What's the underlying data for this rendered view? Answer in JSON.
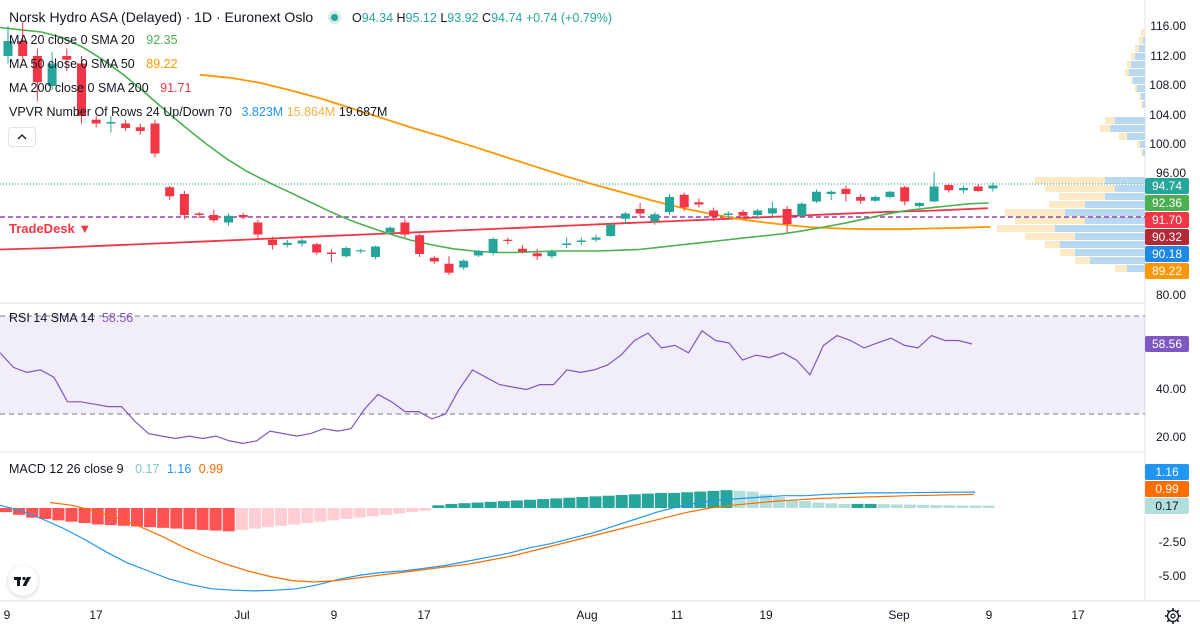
{
  "header": {
    "title": "Norsk Hydro ASA (Delayed) · 1D · Euronext Oslo",
    "status_color": "#26a69a",
    "o_label": "O",
    "o_value": "94.34",
    "h_label": "H",
    "h_value": "95.12",
    "l_label": "L",
    "l_value": "93.92",
    "c_label": "C",
    "c_value": "94.74",
    "change": "+0.74 (+0.79%)"
  },
  "indicators": {
    "ma20": {
      "label": "MA 20 close 0 SMA 20",
      "value": "92.35",
      "color": "#4caf50"
    },
    "ma50": {
      "label": "MA 50 close 0 SMA 50",
      "value": "89.22",
      "color": "#ff9800"
    },
    "ma200": {
      "label": "MA 200 close 0 SMA 200",
      "value": "91.71",
      "color": "#f23645"
    },
    "vpvr": {
      "label": "VPVR Number Of Rows 24 Up/Down 70",
      "v1": "3.823M",
      "v2": "15.864M",
      "v3": "19.687M"
    }
  },
  "brand_label": "TradeDesk ▼",
  "price_axis": {
    "ticks": [
      "116.00",
      "112.00",
      "108.00",
      "104.00",
      "100.00",
      "96.00",
      "80.00"
    ],
    "tags": [
      {
        "value": "94.74",
        "color": "#26a69a"
      },
      {
        "value": "92.36",
        "color": "#4caf50"
      },
      {
        "value": "91.70",
        "color": "#f23645"
      },
      {
        "value": "90.32",
        "color": "#b22833"
      },
      {
        "value": "90.18",
        "color": "#1e88e5"
      },
      {
        "value": "89.22",
        "color": "#ff9800"
      }
    ]
  },
  "rsi": {
    "label": "RSI 14 SMA 14",
    "value": "58.56",
    "color": "#7e57c2",
    "ticks": [
      "40.00",
      "20.00"
    ],
    "tag": "58.56"
  },
  "macd": {
    "label": "MACD 12 26 close 9",
    "v1": "0.17",
    "v2": "1.16",
    "v3": "0.99",
    "ticks": [
      "-2.50",
      "-5.00"
    ],
    "tags": [
      {
        "value": "1.16",
        "color": "#2196f3",
        "text": "#ffffff"
      },
      {
        "value": "0.99",
        "color": "#ff6d00",
        "text": "#ffffff"
      },
      {
        "value": "0.17",
        "color": "#b2dfdb",
        "text": "#131722"
      }
    ]
  },
  "time_axis": [
    "9",
    "17",
    "Jul",
    "9",
    "17",
    "Aug",
    "11",
    "19",
    "Sep",
    "9",
    "17"
  ],
  "icons": {
    "logo": "tradingview-logo-icon",
    "settings": "gear-icon",
    "collapse": "chevron-up-icon"
  },
  "chart_data": {
    "type": "candlestick",
    "up_color": "#26a69a",
    "down_color": "#f23645",
    "ylim": [
      80,
      116
    ],
    "candles": [
      {
        "o": 112,
        "h": 116,
        "l": 111,
        "c": 114
      },
      {
        "o": 114,
        "h": 116.5,
        "l": 111.5,
        "c": 112
      },
      {
        "o": 112,
        "h": 113,
        "l": 106,
        "c": 108.5
      },
      {
        "o": 108,
        "h": 112.5,
        "l": 107.5,
        "c": 111
      },
      {
        "o": 112,
        "h": 113,
        "l": 110,
        "c": 111.5
      },
      {
        "o": 111,
        "h": 112,
        "l": 103,
        "c": 104
      },
      {
        "o": 103.5,
        "h": 104,
        "l": 102.5,
        "c": 103
      },
      {
        "o": 103,
        "h": 104,
        "l": 101.8,
        "c": 103.2
      },
      {
        "o": 103,
        "h": 103.5,
        "l": 102,
        "c": 102.4
      },
      {
        "o": 102.5,
        "h": 103,
        "l": 101.5,
        "c": 102
      },
      {
        "o": 103,
        "h": 103.5,
        "l": 98.5,
        "c": 99
      },
      {
        "o": 94.5,
        "h": 94.7,
        "l": 92.8,
        "c": 93.3
      },
      {
        "o": 93.6,
        "h": 94,
        "l": 90.2,
        "c": 90.8
      },
      {
        "o": 91,
        "h": 91.2,
        "l": 90.4,
        "c": 90.8
      },
      {
        "o": 90.8,
        "h": 91.5,
        "l": 89.8,
        "c": 90.1
      },
      {
        "o": 89.8,
        "h": 91,
        "l": 89.4,
        "c": 90.7
      },
      {
        "o": 90.8,
        "h": 91.1,
        "l": 90.2,
        "c": 90.5
      },
      {
        "o": 89.8,
        "h": 90.2,
        "l": 87.6,
        "c": 88.2
      },
      {
        "o": 87.5,
        "h": 87.9,
        "l": 86.2,
        "c": 86.8
      },
      {
        "o": 86.8,
        "h": 87.5,
        "l": 86.5,
        "c": 87.1
      },
      {
        "o": 87,
        "h": 87.7,
        "l": 86.6,
        "c": 87.4
      },
      {
        "o": 86.9,
        "h": 87.1,
        "l": 85.5,
        "c": 85.8
      },
      {
        "o": 85.8,
        "h": 86.2,
        "l": 84.5,
        "c": 85.6
      },
      {
        "o": 85.3,
        "h": 86.6,
        "l": 85.1,
        "c": 86.4
      },
      {
        "o": 86,
        "h": 86.3,
        "l": 85.7,
        "c": 86.1
      },
      {
        "o": 85.2,
        "h": 86.7,
        "l": 84.9,
        "c": 86.6
      },
      {
        "o": 88.5,
        "h": 89.3,
        "l": 88.3,
        "c": 89.1
      },
      {
        "o": 89.8,
        "h": 90.3,
        "l": 87.8,
        "c": 88.2
      },
      {
        "o": 88.1,
        "h": 88.3,
        "l": 85.2,
        "c": 85.6
      },
      {
        "o": 85.1,
        "h": 85.3,
        "l": 84.3,
        "c": 84.6
      },
      {
        "o": 84.3,
        "h": 85.3,
        "l": 82.8,
        "c": 83.1
      },
      {
        "o": 83.8,
        "h": 84.9,
        "l": 83.5,
        "c": 84.7
      },
      {
        "o": 85.4,
        "h": 86.1,
        "l": 85.2,
        "c": 86.0
      },
      {
        "o": 85.8,
        "h": 87.8,
        "l": 85.4,
        "c": 87.6
      },
      {
        "o": 87.5,
        "h": 87.8,
        "l": 86.9,
        "c": 87.4
      },
      {
        "o": 86.3,
        "h": 86.8,
        "l": 85.7,
        "c": 85.9
      },
      {
        "o": 85.7,
        "h": 86.3,
        "l": 84.8,
        "c": 85.3
      },
      {
        "o": 85.3,
        "h": 86.2,
        "l": 85.0,
        "c": 85.9
      },
      {
        "o": 86.8,
        "h": 87.8,
        "l": 86.4,
        "c": 87.0
      },
      {
        "o": 87.2,
        "h": 87.8,
        "l": 86.8,
        "c": 87.4
      },
      {
        "o": 87.5,
        "h": 88.2,
        "l": 87.2,
        "c": 87.8
      },
      {
        "o": 88.0,
        "h": 89.8,
        "l": 87.9,
        "c": 89.5
      },
      {
        "o": 90.3,
        "h": 91.2,
        "l": 89.6,
        "c": 91.0
      },
      {
        "o": 91.6,
        "h": 92.4,
        "l": 90.6,
        "c": 91.0
      },
      {
        "o": 90.0,
        "h": 91.2,
        "l": 89.5,
        "c": 90.9
      },
      {
        "o": 91.2,
        "h": 93.6,
        "l": 90.8,
        "c": 93.2
      },
      {
        "o": 93.5,
        "h": 93.8,
        "l": 91.3,
        "c": 91.8
      },
      {
        "o": 92.5,
        "h": 93.0,
        "l": 91.8,
        "c": 92.2
      },
      {
        "o": 91.4,
        "h": 91.8,
        "l": 90.0,
        "c": 90.6
      },
      {
        "o": 90.8,
        "h": 91.3,
        "l": 90.1,
        "c": 91.0
      },
      {
        "o": 91.2,
        "h": 91.5,
        "l": 90.4,
        "c": 90.7
      },
      {
        "o": 90.8,
        "h": 91.6,
        "l": 90.3,
        "c": 91.4
      },
      {
        "o": 91.0,
        "h": 92.6,
        "l": 90.6,
        "c": 91.7
      },
      {
        "o": 91.6,
        "h": 92.0,
        "l": 88.5,
        "c": 89.6
      },
      {
        "o": 90.7,
        "h": 92.5,
        "l": 90.5,
        "c": 92.3
      },
      {
        "o": 92.6,
        "h": 94.2,
        "l": 92.4,
        "c": 93.9
      },
      {
        "o": 93.6,
        "h": 94.1,
        "l": 92.8,
        "c": 93.9
      },
      {
        "o": 94.3,
        "h": 94.7,
        "l": 92.6,
        "c": 93.6
      },
      {
        "o": 93.2,
        "h": 93.6,
        "l": 92.3,
        "c": 92.7
      },
      {
        "o": 92.7,
        "h": 93.4,
        "l": 92.5,
        "c": 93.2
      },
      {
        "o": 93.2,
        "h": 94.0,
        "l": 93.0,
        "c": 93.9
      },
      {
        "o": 94.5,
        "h": 94.7,
        "l": 92.1,
        "c": 92.6
      },
      {
        "o": 92.0,
        "h": 92.5,
        "l": 91.8,
        "c": 92.4
      },
      {
        "o": 92.6,
        "h": 96.5,
        "l": 92.5,
        "c": 94.6
      },
      {
        "o": 94.8,
        "h": 95.0,
        "l": 93.8,
        "c": 94.1
      },
      {
        "o": 94.1,
        "h": 94.7,
        "l": 93.7,
        "c": 94.4
      },
      {
        "o": 94.6,
        "h": 94.9,
        "l": 93.9,
        "c": 94.0
      },
      {
        "o": 94.34,
        "h": 95.12,
        "l": 93.92,
        "c": 94.74
      }
    ],
    "ma20_values": [
      115.8,
      115.5,
      115.2,
      114.5,
      113.2,
      111.5,
      109.5,
      107.2,
      104.8,
      102.5,
      100.3,
      98.3,
      96.6,
      95.2,
      93.9,
      92.6,
      91.3,
      90.1,
      89.1,
      88.2,
      87.4,
      86.8,
      86.3,
      86.0,
      85.8,
      85.8,
      85.9,
      86.0,
      86.0,
      86.0,
      86.1,
      86.2,
      86.5,
      86.8,
      87.1,
      87.4,
      87.7,
      88.0,
      88.3,
      88.7,
      89.2,
      89.7,
      90.3,
      90.9,
      91.4,
      91.7,
      92.0,
      92.3,
      92.4
    ],
    "ma50_values": [
      109.5,
      109.1,
      108.4,
      107.4,
      106.3,
      105.0,
      103.7,
      102.4,
      101.2,
      99.9,
      98.6,
      97.3,
      96.0,
      94.8,
      93.7,
      92.6,
      91.6,
      90.8,
      90.1,
      89.6,
      89.2,
      89.0,
      88.9,
      88.9,
      89.0,
      89.1,
      89.22
    ],
    "ma200_values": [
      86.2,
      86.4,
      86.7,
      87.0,
      87.3,
      87.6,
      87.9,
      88.2,
      88.5,
      88.8,
      89.1,
      89.4,
      89.7,
      90.0,
      90.3,
      90.6,
      90.9,
      91.2,
      91.4,
      91.71
    ],
    "rsi_values": [
      55,
      49,
      47,
      48,
      45,
      35,
      35,
      34,
      33,
      33,
      27,
      22,
      21,
      20,
      21,
      20,
      21,
      19,
      18,
      19,
      23,
      22,
      21,
      22,
      24,
      23,
      24,
      32,
      38,
      35,
      31,
      31,
      28,
      30,
      40,
      48,
      45,
      42,
      41,
      40,
      42,
      42,
      48,
      47,
      48,
      50,
      54,
      60,
      63,
      57,
      58,
      55,
      64,
      60,
      59,
      52,
      54,
      53,
      55,
      52,
      46,
      58,
      62,
      60,
      57,
      59,
      61,
      58,
      57,
      62,
      60,
      60,
      58.56
    ],
    "macd_values": [
      0.2,
      -0.2,
      -0.8,
      -1.5,
      -2.3,
      -3.2,
      -4.0,
      -4.6,
      -5.2,
      -5.6,
      -5.9,
      -6.0,
      -6.05,
      -6.0,
      -5.9,
      -5.6,
      -5.2,
      -4.9,
      -4.7,
      -4.6,
      -4.4,
      -4.2,
      -3.9,
      -3.6,
      -3.3,
      -2.9,
      -2.6,
      -2.2,
      -1.8,
      -1.3,
      -0.8,
      -0.3,
      0.1,
      0.4,
      0.6,
      0.7,
      0.8,
      0.9,
      0.9,
      1.0,
      1.05,
      1.1,
      1.1,
      1.12,
      1.14,
      1.15,
      1.16
    ],
    "signal_values": [
      0.4,
      0.2,
      -0.2,
      -0.7,
      -1.3,
      -2.0,
      -2.8,
      -3.5,
      -4.1,
      -4.6,
      -5.0,
      -5.3,
      -5.4,
      -5.3,
      -5.1,
      -4.9,
      -4.7,
      -4.5,
      -4.3,
      -4.1,
      -3.8,
      -3.5,
      -3.1,
      -2.7,
      -2.3,
      -1.9,
      -1.5,
      -1.1,
      -0.7,
      -0.3,
      0.0,
      0.2,
      0.35,
      0.5,
      0.6,
      0.7,
      0.75,
      0.8,
      0.85,
      0.9,
      0.93,
      0.96,
      0.99
    ],
    "histogram_values": [
      -0.3,
      -0.5,
      -0.7,
      -0.8,
      -0.9,
      -1.0,
      -1.1,
      -1.2,
      -1.25,
      -1.3,
      -1.35,
      -1.4,
      -1.45,
      -1.5,
      -1.55,
      -1.6,
      -1.65,
      -1.7,
      -1.6,
      -1.5,
      -1.4,
      -1.3,
      -1.2,
      -1.1,
      -1.0,
      -0.9,
      -0.8,
      -0.7,
      -0.6,
      -0.5,
      -0.4,
      -0.3,
      -0.2,
      0.2,
      0.3,
      0.35,
      0.4,
      0.45,
      0.5,
      0.55,
      0.6,
      0.65,
      0.7,
      0.75,
      0.8,
      0.85,
      0.9,
      0.95,
      1.0,
      1.05,
      1.1,
      1.1,
      1.15,
      1.2,
      1.25,
      1.3,
      1.25,
      1.2,
      1.0,
      0.8,
      0.6,
      0.5,
      0.4,
      0.35,
      0.3,
      0.3,
      0.3,
      0.28,
      0.26,
      0.25,
      0.23,
      0.21,
      0.2,
      0.19,
      0.18,
      0.17
    ]
  }
}
